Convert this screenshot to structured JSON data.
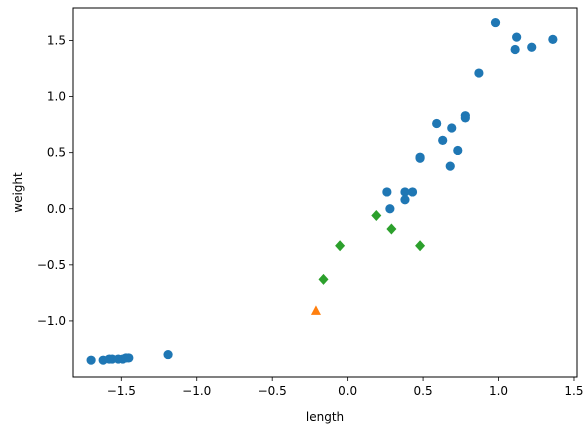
{
  "chart_data": {
    "type": "scatter",
    "xlabel": "length",
    "ylabel": "weight",
    "xlim": [
      -1.82,
      1.52
    ],
    "ylim": [
      -1.5,
      1.79
    ],
    "x_ticks": [
      {
        "value": -1.5,
        "label": "−1.5"
      },
      {
        "value": -1.0,
        "label": "−1.0"
      },
      {
        "value": -0.5,
        "label": "−0.5"
      },
      {
        "value": 0.0,
        "label": "0.0"
      },
      {
        "value": 0.5,
        "label": "0.5"
      },
      {
        "value": 1.0,
        "label": "1.0"
      },
      {
        "value": 1.5,
        "label": "1.5"
      }
    ],
    "y_ticks": [
      {
        "value": -1.0,
        "label": "−1.0"
      },
      {
        "value": -0.5,
        "label": "−0.5"
      },
      {
        "value": 0.0,
        "label": "0.0"
      },
      {
        "value": 0.5,
        "label": "0.5"
      },
      {
        "value": 1.0,
        "label": "1.0"
      },
      {
        "value": 1.5,
        "label": "1.5"
      }
    ],
    "grid": false,
    "series": [
      {
        "marker": "circle",
        "color": "#1f77b4",
        "points": [
          [
            0.98,
            1.66
          ],
          [
            1.12,
            1.53
          ],
          [
            1.36,
            1.51
          ],
          [
            1.22,
            1.44
          ],
          [
            1.11,
            1.42
          ],
          [
            0.87,
            1.21
          ],
          [
            0.78,
            0.83
          ],
          [
            0.78,
            0.81
          ],
          [
            0.59,
            0.76
          ],
          [
            0.69,
            0.72
          ],
          [
            0.63,
            0.61
          ],
          [
            0.73,
            0.52
          ],
          [
            0.48,
            0.46
          ],
          [
            0.48,
            0.45
          ],
          [
            0.68,
            0.38
          ],
          [
            0.26,
            0.15
          ],
          [
            0.38,
            0.15
          ],
          [
            0.43,
            0.15
          ],
          [
            0.38,
            0.08
          ],
          [
            0.28,
            0.0
          ],
          [
            -1.7,
            -1.35
          ],
          [
            -1.62,
            -1.35
          ],
          [
            -1.58,
            -1.34
          ],
          [
            -1.56,
            -1.34
          ],
          [
            -1.52,
            -1.34
          ],
          [
            -1.49,
            -1.34
          ],
          [
            -1.47,
            -1.33
          ],
          [
            -1.45,
            -1.33
          ],
          [
            -1.19,
            -1.3
          ]
        ]
      },
      {
        "marker": "triangle",
        "color": "#ff7f0e",
        "points": [
          [
            -0.21,
            -0.91
          ]
        ]
      },
      {
        "marker": "diamond",
        "color": "#2ca02c",
        "points": [
          [
            0.19,
            -0.06
          ],
          [
            0.29,
            -0.18
          ],
          [
            -0.05,
            -0.33
          ],
          [
            0.48,
            -0.33
          ],
          [
            -0.16,
            -0.63
          ]
        ]
      }
    ]
  }
}
